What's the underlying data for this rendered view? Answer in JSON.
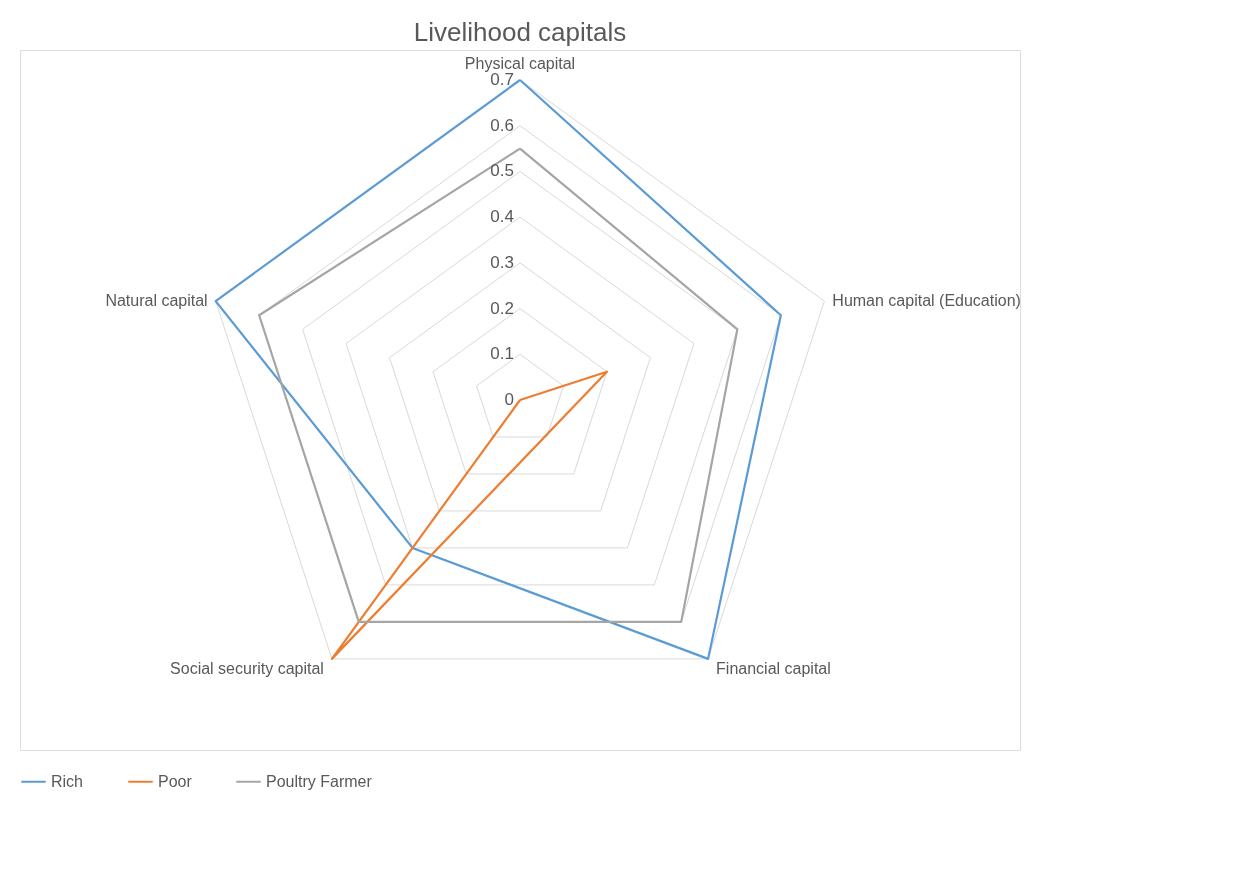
{
  "chart_data": {
    "type": "radar",
    "title": "Livelihood capitals",
    "categories": [
      "Physical capital",
      "Human capital (Education)",
      "Financial capital",
      "Social security capital",
      "Natural capital"
    ],
    "series": [
      {
        "name": "Rich",
        "color": "#5b9bd5",
        "values": [
          0.7,
          0.6,
          0.7,
          0.4,
          0.7
        ]
      },
      {
        "name": "Poor",
        "color": "#ed7d31",
        "values": [
          0,
          0.2,
          null,
          0.7,
          null
        ]
      },
      {
        "name": "Poultry Farmer",
        "color": "#a5a5a5",
        "values": [
          0.55,
          0.5,
          0.6,
          0.6,
          0.6
        ]
      }
    ],
    "ylim": [
      0,
      0.7
    ],
    "yticks": [
      0,
      0.1,
      0.2,
      0.3,
      0.4,
      0.5,
      0.6,
      0.7
    ],
    "grid": true,
    "legend": "bottom",
    "line_style": "solid",
    "marker": "none"
  }
}
